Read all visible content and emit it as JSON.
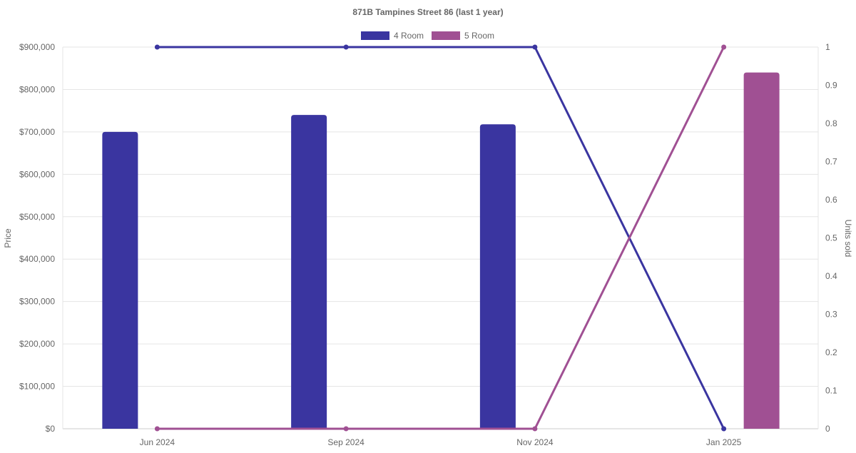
{
  "chart_data": {
    "type": "bar",
    "title": "871B Tampines Street 86 (last 1 year)",
    "categories": [
      "Jun 2024",
      "Sep 2024",
      "Nov 2024",
      "Jan 2025"
    ],
    "ylabel": "Price",
    "y2label": "Units sold",
    "ylim": [
      0,
      900000
    ],
    "y2lim": [
      0,
      1
    ],
    "yticks": [
      "$0",
      "$100,000",
      "$200,000",
      "$300,000",
      "$400,000",
      "$500,000",
      "$600,000",
      "$700,000",
      "$800,000",
      "$900,000"
    ],
    "y2ticks": [
      "0",
      "0.1",
      "0.2",
      "0.3",
      "0.4",
      "0.5",
      "0.6",
      "0.7",
      "0.8",
      "0.9",
      "1"
    ],
    "grid": true,
    "legend_position": "top",
    "series": [
      {
        "name": "4 Room",
        "color": "#3a35a0",
        "price": [
          700000,
          740000,
          718000,
          null
        ],
        "units_sold": [
          1,
          1,
          1,
          0
        ]
      },
      {
        "name": "5 Room",
        "color": "#a05093",
        "price": [
          null,
          null,
          null,
          840000
        ],
        "units_sold": [
          0,
          0,
          0,
          1
        ]
      }
    ]
  }
}
